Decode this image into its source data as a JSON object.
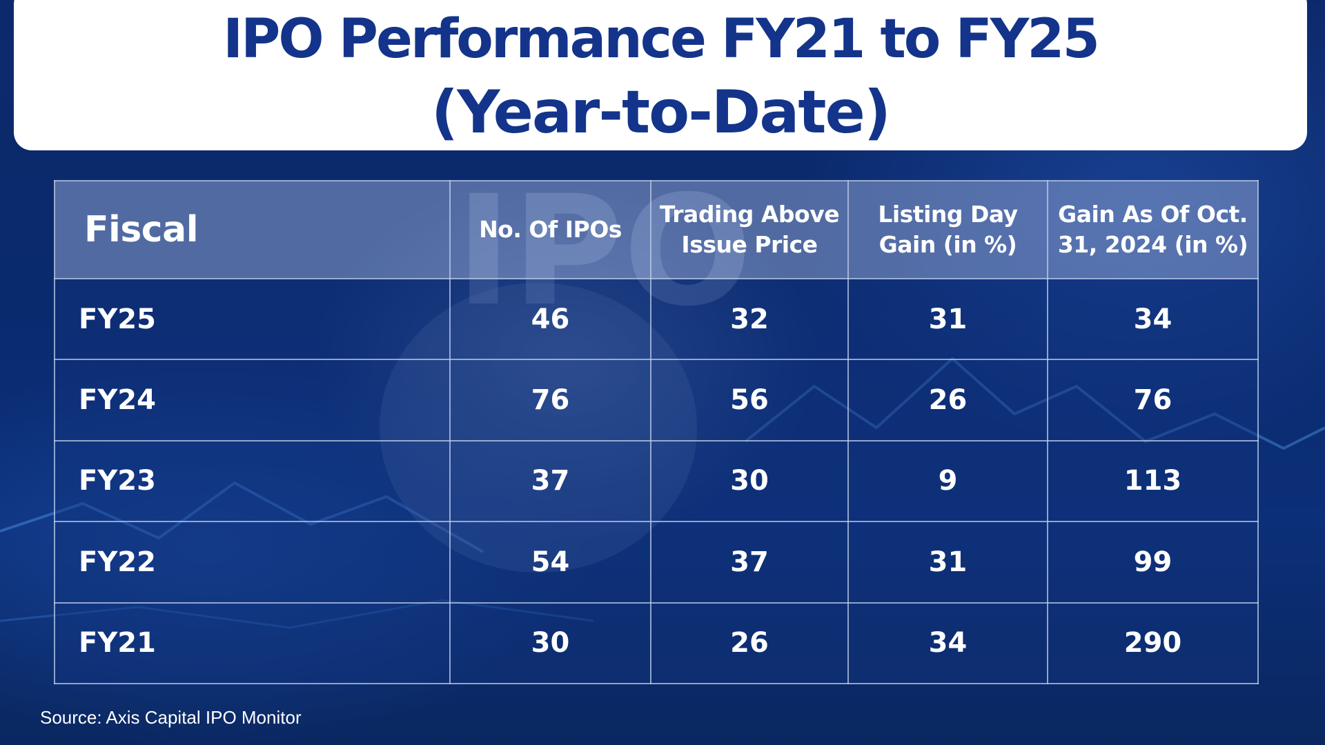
{
  "title": {
    "line1": "IPO Performance FY21 to FY25",
    "line2": "(Year-to-Date)"
  },
  "background": {
    "watermark_text": "IPO"
  },
  "table": {
    "headers": {
      "fiscal": "Fiscal",
      "num_ipos": "No. Of IPOs",
      "trading_above_line1": "Trading Above",
      "trading_above_line2": "Issue Price",
      "listing_gain_line1": "Listing Day",
      "listing_gain_line2": "Gain (in %)",
      "gain_oct_line1": "Gain As Of Oct.",
      "gain_oct_line2": "31, 2024 (in %)"
    },
    "rows": [
      {
        "fiscal": "FY25",
        "num_ipos": "46",
        "trading_above": "32",
        "listing_gain": "31",
        "gain_oct": "34"
      },
      {
        "fiscal": "FY24",
        "num_ipos": "76",
        "trading_above": "56",
        "listing_gain": "26",
        "gain_oct": "76"
      },
      {
        "fiscal": "FY23",
        "num_ipos": "37",
        "trading_above": "30",
        "listing_gain": "9",
        "gain_oct": "113"
      },
      {
        "fiscal": "FY22",
        "num_ipos": "54",
        "trading_above": "37",
        "listing_gain": "31",
        "gain_oct": "99"
      },
      {
        "fiscal": "FY21",
        "num_ipos": "30",
        "trading_above": "26",
        "listing_gain": "34",
        "gain_oct": "290"
      }
    ]
  },
  "source": "Source: Axis Capital IPO Monitor",
  "colors": {
    "title_text": "#13348a",
    "background": "#0a2a6e",
    "header_fill": "#8ca0cd",
    "grid_line": "#becdeb"
  }
}
